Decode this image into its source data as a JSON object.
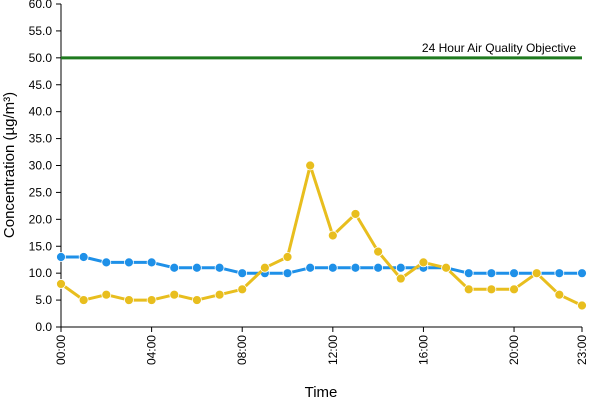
{
  "chart_data": {
    "type": "line",
    "title": "",
    "xlabel": "Time",
    "ylabel": "Concentration (µg/m³)",
    "ylim": [
      0,
      60
    ],
    "y_ticks": [
      "0.0",
      "5.0",
      "10.0",
      "15.0",
      "20.0",
      "25.0",
      "30.0",
      "35.0",
      "40.0",
      "45.0",
      "50.0",
      "55.0",
      "60.0"
    ],
    "x": [
      "00:00",
      "01:00",
      "02:00",
      "03:00",
      "04:00",
      "05:00",
      "06:00",
      "07:00",
      "08:00",
      "09:00",
      "10:00",
      "11:00",
      "12:00",
      "13:00",
      "14:00",
      "15:00",
      "16:00",
      "17:00",
      "18:00",
      "19:00",
      "20:00",
      "21:00",
      "22:00",
      "23:00"
    ],
    "x_tick_labels": [
      "00:00",
      "04:00",
      "08:00",
      "12:00",
      "16:00",
      "20:00",
      "23:00"
    ],
    "grid": false,
    "legend": "none",
    "series": [
      {
        "color": "#1E90E8",
        "values": [
          13,
          13,
          12,
          12,
          12,
          11,
          11,
          11,
          10,
          10,
          10,
          11,
          11,
          11,
          11,
          11,
          11,
          11,
          10,
          10,
          10,
          10,
          10,
          10
        ]
      },
      {
        "color": "#E8BE1E",
        "values": [
          8,
          5,
          6,
          5,
          5,
          6,
          5,
          6,
          7,
          11,
          13,
          30,
          17,
          21,
          14,
          9,
          12,
          11,
          7,
          7,
          7,
          10,
          6,
          4
        ]
      }
    ],
    "reference_line": {
      "value": 50,
      "label": "24 Hour Air Quality Objective",
      "color": "#1F7A1F"
    }
  }
}
